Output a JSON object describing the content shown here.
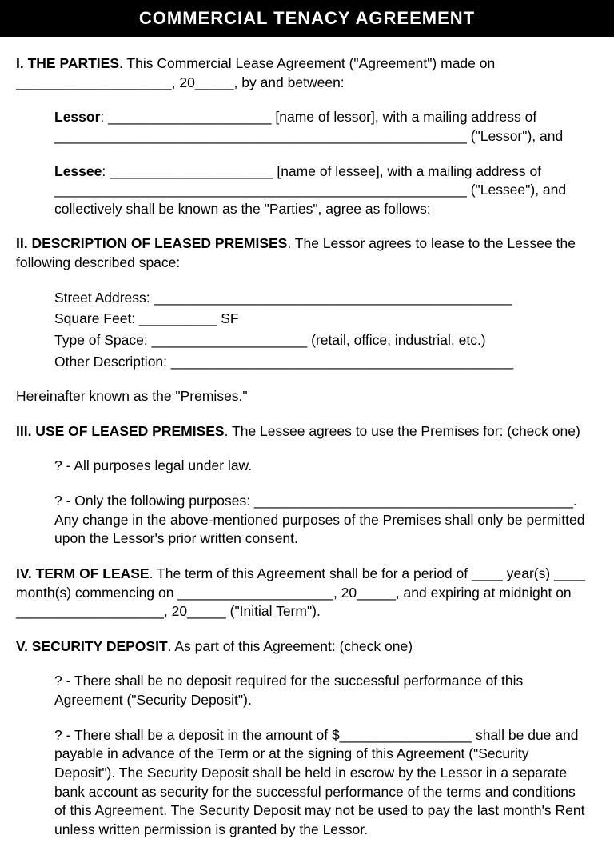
{
  "header": {
    "title": "COMMERCIAL TENACY AGREEMENT"
  },
  "section1": {
    "heading": "I. THE PARTIES",
    "intro": ". This Commercial Lease Agreement (\"Agreement\") made on ____________________, 20_____, by and between:",
    "lessor_label": "Lessor",
    "lessor_text": ": _____________________ [name of lessor], with a mailing address of _____________________________________________________ (\"Lessor\"), and",
    "lessee_label": "Lessee",
    "lessee_text": ": _____________________ [name of lessee], with a mailing address of _____________________________________________________ (\"Lessee\"), and collectively shall be known as the \"Parties\", agree as follows:"
  },
  "section2": {
    "heading": "II. DESCRIPTION OF LEASED PREMISES",
    "intro": ". The Lessor agrees to lease to the Lessee the following described space:",
    "street": "Street Address: ______________________________________________",
    "sqft": "Square Feet: __________ SF",
    "type": "Type of Space: ____________________ (retail, office, industrial, etc.)",
    "other": "Other Description: ____________________________________________",
    "footer": "Hereinafter known as the \"Premises.\""
  },
  "section3": {
    "heading": "III. USE OF LEASED PREMISES",
    "intro": ". The Lessee agrees to use the Premises for: (check one)",
    "option1": "?   - All purposes legal under law.",
    "option2": "?   - Only the following purposes: _________________________________________.",
    "option2_body": "Any change in the above-mentioned purposes of the Premises shall only be permitted upon the Lessor's prior written consent."
  },
  "section4": {
    "heading": "IV. TERM OF LEASE",
    "body": ". The term of this Agreement shall be for a period of ____ year(s) ____ month(s) commencing on ____________________, 20_____, and expiring at midnight on ___________________, 20_____ (\"Initial Term\")."
  },
  "section5": {
    "heading": "V. SECURITY DEPOSIT",
    "intro": ". As part of this Agreement: (check one)",
    "option1": "?   - There shall be no deposit required for the successful performance of this Agreement (\"Security Deposit\").",
    "option2": "?   - There shall be a deposit in the amount of $_________________ shall be due and payable in advance of the Term or at the signing of this Agreement (\"Security Deposit\"). The Security Deposit shall be held in escrow by the Lessor in a separate bank account as security for the successful performance of the terms and conditions of this Agreement. The Security Deposit may not be used to pay the last month's Rent unless written permission is granted by the Lessor."
  }
}
